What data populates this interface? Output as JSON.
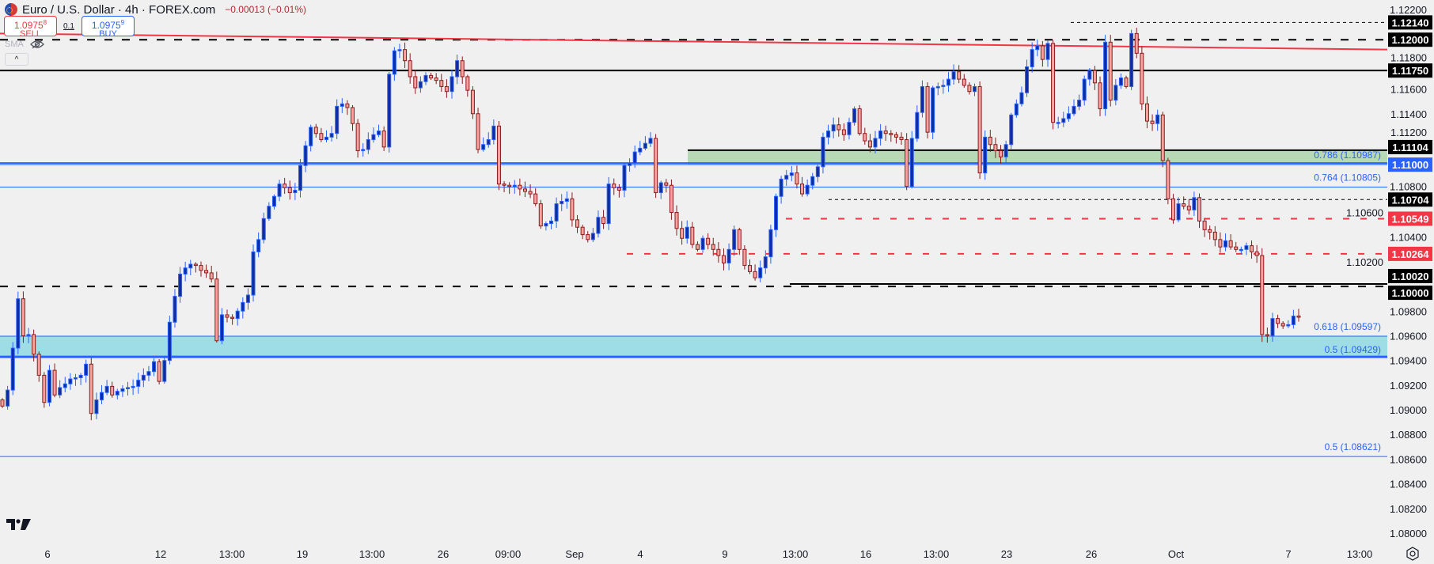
{
  "header": {
    "symbol": "Euro / U.S. Dollar · 4h · FOREX.com",
    "change": "−0.00013 (−0.01%)",
    "sell_price_main": "1.0975",
    "sell_price_sup": "8",
    "sell_label": "SELL",
    "spread": "0.1",
    "buy_price_main": "1.0975",
    "buy_price_sup": "9",
    "buy_label": "BUY",
    "indicator": "SMA",
    "collapse_glyph": "^"
  },
  "colors": {
    "bull_body": "#0f2d9e",
    "bull_border": "#2962ff",
    "bear_body": "#f7a1a1",
    "bear_border": "#8b1c1c",
    "red": "#f23645",
    "blue": "#2962ff",
    "black": "#000000",
    "green_zone": "#b8d9b6",
    "cyan_zone": "#9fdde6"
  },
  "chart_data": {
    "type": "candlestick",
    "title": "Euro / U.S. Dollar · 4h · FOREX.com",
    "ylim": [
      1.0795,
      1.1225
    ],
    "y_ticks": [
      "1.12200",
      "1.11800",
      "1.11600",
      "1.11400",
      "1.11200",
      "1.10800",
      "1.10600",
      "1.10400",
      "1.10200",
      "1.09800",
      "1.09600",
      "1.09400",
      "1.09200",
      "1.09000",
      "1.08800",
      "1.08600",
      "1.08400",
      "1.08200",
      "1.08000"
    ],
    "x_ticks": [
      "6",
      "12",
      "13:00",
      "19",
      "13:00",
      "26",
      "09:00",
      "Sep",
      "4",
      "9",
      "13:00",
      "16",
      "13:00",
      "23",
      "26",
      "Oct",
      "7",
      "13:00"
    ],
    "first_open": 1.0908,
    "closes": [
      1.0903,
      1.0916,
      1.095,
      1.099,
      1.096,
      1.0961,
      1.0945,
      1.0928,
      1.0906,
      1.0932,
      1.0912,
      1.0918,
      1.0921,
      1.0925,
      1.0926,
      1.0928,
      1.0937,
      1.0897,
      1.0908,
      1.0914,
      1.0919,
      1.0912,
      1.0915,
      1.0917,
      1.0918,
      1.0919,
      1.0924,
      1.0928,
      1.0931,
      1.0939,
      1.0923,
      1.094,
      1.0971,
      1.0992,
      1.101,
      1.1015,
      1.1018,
      1.1017,
      1.1013,
      1.1011,
      1.1006,
      1.0956,
      1.0977,
      1.0975,
      1.0974,
      1.098,
      1.0987,
      1.0993,
      1.1028,
      1.1038,
      1.1055,
      1.1065,
      1.1073,
      1.1083,
      1.108,
      1.1076,
      1.1078,
      1.1098,
      1.1114,
      1.1129,
      1.1124,
      1.1119,
      1.1121,
      1.1124,
      1.1146,
      1.1148,
      1.1145,
      1.1132,
      1.111,
      1.1111,
      1.1119,
      1.1123,
      1.1126,
      1.1113,
      1.1172,
      1.1191,
      1.1192,
      1.1183,
      1.117,
      1.1161,
      1.1166,
      1.1171,
      1.1169,
      1.1167,
      1.1162,
      1.1158,
      1.117,
      1.1183,
      1.117,
      1.1159,
      1.114,
      1.1111,
      1.1115,
      1.1119,
      1.113,
      1.1083,
      1.1082,
      1.1081,
      1.1082,
      1.1079,
      1.1077,
      1.1075,
      1.1067,
      1.1049,
      1.1051,
      1.1053,
      1.1067,
      1.1069,
      1.1071,
      1.1054,
      1.1048,
      1.1042,
      1.1038,
      1.1043,
      1.1056,
      1.1051,
      1.1083,
      1.108,
      1.1078,
      1.1098,
      1.11,
      1.1109,
      1.1112,
      1.1116,
      1.112,
      1.1076,
      1.1084,
      1.1082,
      1.106,
      1.1047,
      1.1039,
      1.1048,
      1.1034,
      1.103,
      1.1039,
      1.1034,
      1.103,
      1.1025,
      1.1019,
      1.103,
      1.1046,
      1.103,
      1.1017,
      1.1012,
      1.1007,
      1.1015,
      1.1024,
      1.1046,
      1.1073,
      1.1087,
      1.109,
      1.1092,
      1.1083,
      1.1075,
      1.1082,
      1.1089,
      1.1097,
      1.1121,
      1.1126,
      1.1131,
      1.1127,
      1.1123,
      1.1133,
      1.1144,
      1.1124,
      1.1118,
      1.1113,
      1.112,
      1.1126,
      1.1124,
      1.1123,
      1.1121,
      1.1119,
      1.1081,
      1.112,
      1.1141,
      1.1162,
      1.1125,
      1.1161,
      1.1162,
      1.1163,
      1.1168,
      1.1174,
      1.1168,
      1.1163,
      1.1158,
      1.1162,
      1.1092,
      1.1121,
      1.1115,
      1.111,
      1.1105,
      1.1115,
      1.1139,
      1.1148,
      1.1157,
      1.1178,
      1.1192,
      1.1195,
      1.1184,
      1.1197,
      1.1133,
      1.1133,
      1.1136,
      1.114,
      1.1146,
      1.1151,
      1.1168,
      1.1175,
      1.1165,
      1.1144,
      1.1198,
      1.1151,
      1.1163,
      1.1169,
      1.1162,
      1.1205,
      1.1189,
      1.1148,
      1.1134,
      1.1132,
      1.1139,
      1.1102,
      1.1071,
      1.1054,
      1.1067,
      1.1065,
      1.1062,
      1.1072,
      1.1053,
      1.1046,
      1.1044,
      1.1038,
      1.1032,
      1.1037,
      1.1032,
      1.103,
      1.103,
      1.1033,
      1.1028,
      1.1025,
      1.0961,
      1.096,
      1.0974,
      1.097,
      1.0968,
      1.0969,
      1.0976,
      1.09758
    ],
    "levels": [
      {
        "price": 1.1214,
        "label": "1.12140",
        "kind": "black",
        "style": "dashed-thin"
      },
      {
        "price": 1.12,
        "label": "1.12000",
        "kind": "black",
        "style": "dashed-thick"
      },
      {
        "price": 1.1175,
        "label": "1.11750",
        "kind": "black",
        "style": "solid"
      },
      {
        "price": 1.11104,
        "label": "1.11104",
        "kind": "black",
        "style": "solid"
      },
      {
        "price": 1.11,
        "label": "1.11000",
        "kind": "blue",
        "style": "solid"
      },
      {
        "price": 1.10704,
        "label": "1.10704",
        "kind": "black",
        "style": "dashed-thin"
      },
      {
        "price": 1.10549,
        "label": "1.10549",
        "kind": "red",
        "style": "dashed"
      },
      {
        "price": 1.10264,
        "label": "1.10264",
        "kind": "red",
        "style": "dashed"
      },
      {
        "price": 1.1002,
        "label": "1.10020",
        "kind": "black",
        "style": "solid"
      },
      {
        "price": 1.1,
        "label": "1.10000",
        "kind": "black",
        "style": "dashed-thick"
      }
    ],
    "fib_lines": [
      {
        "price": 1.10987,
        "text": "0.786 (1.10987)"
      },
      {
        "price": 1.10805,
        "text": "0.764 (1.10805)"
      },
      {
        "price": 1.09597,
        "text": "0.618 (1.09597)"
      },
      {
        "price": 1.09429,
        "text": "0.5 (1.09429)"
      },
      {
        "price": 1.08621,
        "text": "0.5 (1.08621)"
      }
    ],
    "zones": [
      {
        "from": 1.10987,
        "to": 1.11104,
        "color": "#b8d9b6"
      },
      {
        "from": 1.09429,
        "to": 1.09597,
        "color": "#9fdde6"
      }
    ],
    "trendline": {
      "start_price": 1.1205,
      "end_price": 1.1192,
      "color": "#f23645"
    }
  }
}
